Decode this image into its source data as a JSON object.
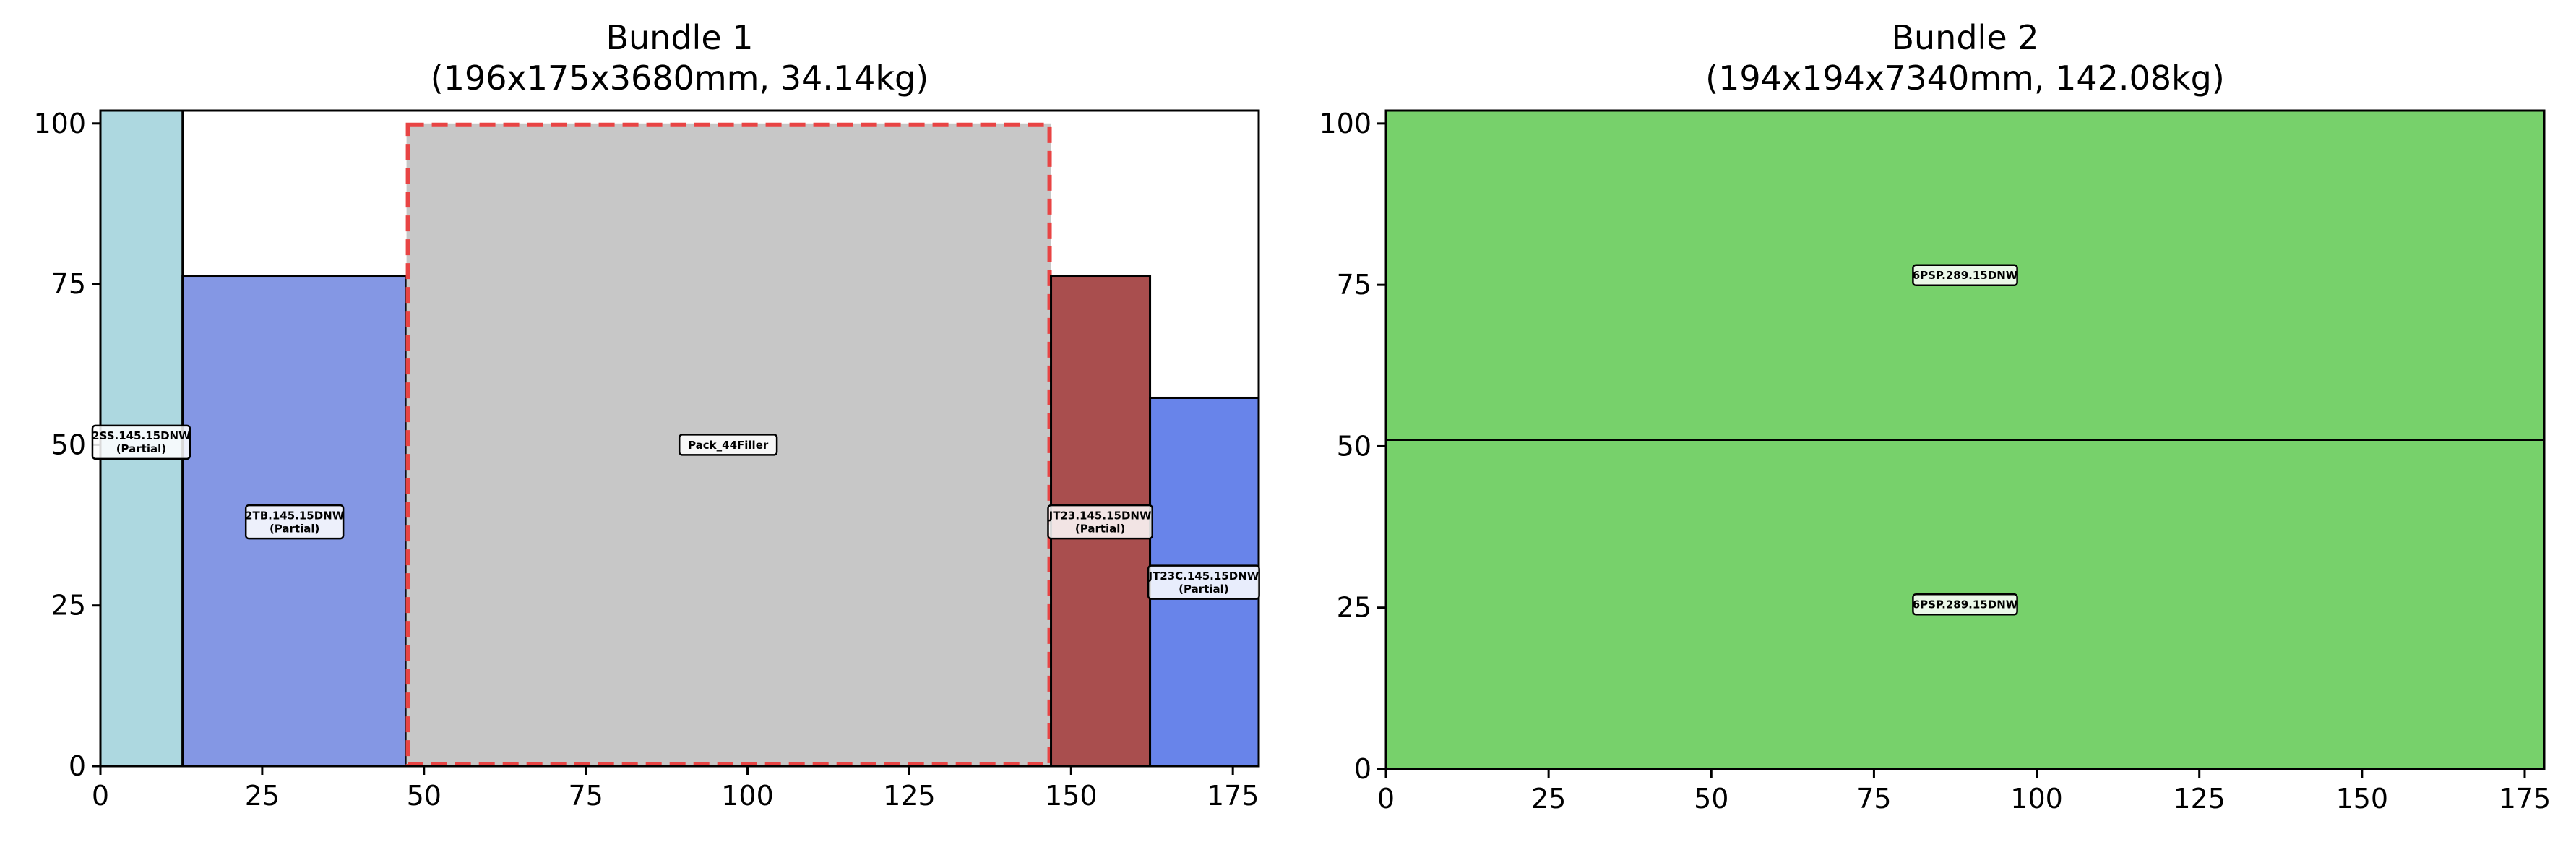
{
  "chart_data": [
    {
      "type": "rect-layout",
      "title": "Bundle 1",
      "subtitle": "(196x175x3680mm, 34.14kg)",
      "xlim": [
        0,
        179
      ],
      "ylim": [
        0,
        102
      ],
      "xticks": [
        0,
        25,
        50,
        75,
        100,
        125,
        150,
        175
      ],
      "yticks": [
        0,
        25,
        50,
        75,
        100
      ],
      "rects": [
        {
          "x": 0,
          "y": 0,
          "w": 12.7,
          "h": 102,
          "color": "#add8e0",
          "label": "2SS.145.15DNW",
          "note": "(Partial)",
          "lx": 6.3,
          "ly": 50.4
        },
        {
          "x": 12.7,
          "y": 0,
          "w": 34.6,
          "h": 76.3,
          "color": "#8497e4",
          "label": "2TB.145.15DNW",
          "note": "(Partial)",
          "lx": 30,
          "ly": 38
        },
        {
          "x": 47.3,
          "y": 0,
          "w": 99.6,
          "h": 100,
          "color": "#c7c7c7",
          "label": "Pack_44Filler",
          "note": "",
          "lx": 97,
          "ly": 50,
          "dashed": true,
          "dash_color": "#e84444"
        },
        {
          "x": 146.9,
          "y": 0,
          "w": 15.3,
          "h": 76.3,
          "color": "#a94e4e",
          "label": "JT23.145.15DNW",
          "note": "(Partial)",
          "lx": 154.5,
          "ly": 38
        },
        {
          "x": 162.2,
          "y": 0,
          "w": 16.8,
          "h": 57.3,
          "color": "#6884ea",
          "label": "JT23C.145.15DNW",
          "note": "(Partial)",
          "lx": 170.5,
          "ly": 28.6
        }
      ]
    },
    {
      "type": "rect-layout",
      "title": "Bundle 2",
      "subtitle": "(194x194x7340mm, 142.08kg)",
      "xlim": [
        0,
        178
      ],
      "ylim": [
        0,
        102
      ],
      "xticks": [
        0,
        25,
        50,
        75,
        100,
        125,
        150,
        175
      ],
      "yticks": [
        0,
        25,
        50,
        75,
        100
      ],
      "rects": [
        {
          "x": 0,
          "y": 0,
          "w": 178,
          "h": 51,
          "color": "#77d16b",
          "label": "6PSP.289.15DNW",
          "note": "",
          "lx": 89,
          "ly": 25.5
        },
        {
          "x": 0,
          "y": 51,
          "w": 178,
          "h": 51,
          "color": "#77d16b",
          "label": "6PSP.289.15DNW",
          "note": "",
          "lx": 89,
          "ly": 76.5
        }
      ]
    }
  ]
}
